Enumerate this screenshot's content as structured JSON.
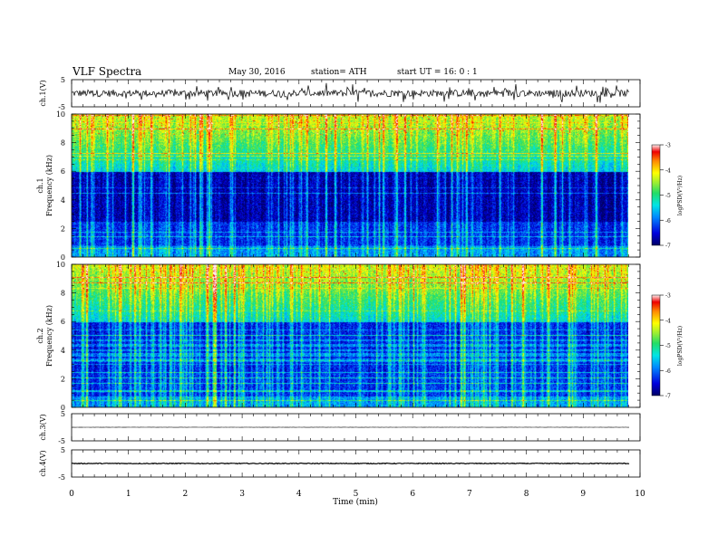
{
  "header": {
    "title": "VLF  Spectra",
    "date": "May 30, 2016",
    "station": "station= ATH",
    "start": "start  UT  =    16: 0  : 1"
  },
  "chart_data": [
    {
      "type": "line",
      "name": "ch.1 waveform",
      "ylabel": "ch.1(V)",
      "ylim": [
        -5,
        5
      ],
      "yticks": [
        "5",
        "-5"
      ],
      "xlim": [
        0,
        10
      ],
      "data_extent_min": [
        0,
        9.82
      ],
      "baseline": 0.0,
      "amplitude": 1.3
    },
    {
      "type": "heatmap",
      "name": "ch.1 spectrogram",
      "ylabel": "ch.1",
      "ylabel2": "Frequency  (kHz)",
      "ylim": [
        0,
        10
      ],
      "yticks": [
        "0",
        "2",
        "4",
        "6",
        "8",
        "10"
      ],
      "xlim": [
        0,
        10
      ],
      "colorbar": {
        "label": "logPSD(V²/Hz)",
        "ticks": [
          "-3",
          "-4",
          "-5",
          "-6",
          "-7"
        ],
        "range": [
          -7,
          -3
        ]
      }
    },
    {
      "type": "heatmap",
      "name": "ch.2 spectrogram",
      "ylabel": "ch.2",
      "ylabel2": "Frequency  (kHz)",
      "ylim": [
        0,
        10
      ],
      "yticks": [
        "0",
        "2",
        "4",
        "6",
        "8",
        "10"
      ],
      "xlim": [
        0,
        10
      ],
      "colorbar": {
        "label": "logPSD(V²/Hz)",
        "ticks": [
          "-3",
          "-4",
          "-5",
          "-6",
          "-7"
        ],
        "range": [
          -7,
          -3
        ]
      }
    },
    {
      "type": "line",
      "name": "ch.3 waveform",
      "ylabel": "ch.3(V)",
      "ylim": [
        -5,
        5
      ],
      "yticks": [
        "5",
        "-5"
      ],
      "xlim": [
        0,
        10
      ],
      "baseline": 0.0,
      "amplitude": 0.05
    },
    {
      "type": "line",
      "name": "ch.4 waveform",
      "ylabel": "ch.4(V)",
      "ylim": [
        -5,
        5
      ],
      "yticks": [
        "5",
        "-5"
      ],
      "xlim": [
        0,
        10
      ],
      "baseline": 0.0,
      "amplitude": 0.15
    }
  ],
  "xaxis": {
    "label": "Time  (min)",
    "ticks": [
      "0",
      "1",
      "2",
      "3",
      "4",
      "5",
      "6",
      "7",
      "8",
      "9",
      "10"
    ],
    "range": [
      0,
      10
    ],
    "data_end": 9.82
  }
}
